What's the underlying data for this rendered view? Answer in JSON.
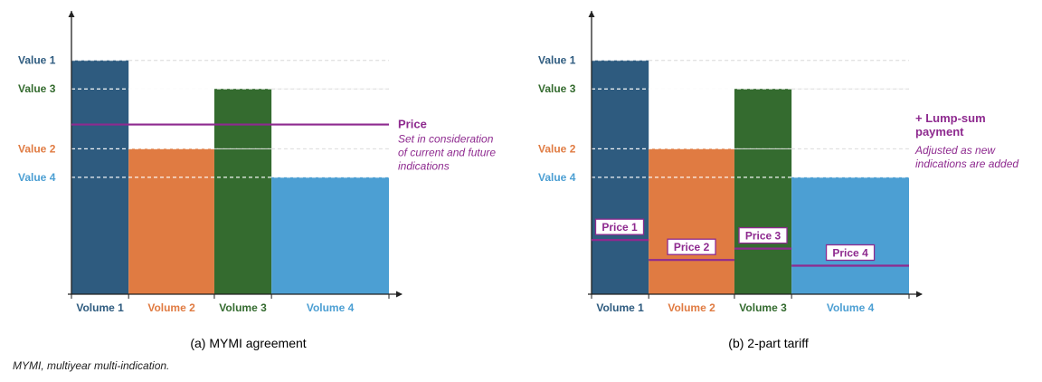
{
  "colors": {
    "value1": "#2e5b7f",
    "value2": "#e07b42",
    "value3": "#346b2f",
    "value4": "#4c9fd3",
    "price": "#8e2a8f",
    "dash": "#dddddd",
    "axis": "#222222"
  },
  "footnote": "MYMI, multiyear multi-indication.",
  "chart_data": [
    {
      "type": "bar",
      "title": "(a) MYMI agreement",
      "categories": [
        "Volume 1",
        "Volume 2",
        "Volume 3",
        "Volume 4"
      ],
      "widths": [
        0.9,
        1.35,
        0.9,
        1.85
      ],
      "values": [
        8.2,
        5.1,
        7.2,
        4.1
      ],
      "value_labels": [
        "Value 1",
        "Value 2",
        "Value 3",
        "Value 4"
      ],
      "ylim": [
        0,
        10
      ],
      "price": {
        "value": 5.95,
        "title": "Price",
        "note": [
          "Set in consideration",
          "of current and future",
          "indications"
        ]
      }
    },
    {
      "type": "bar",
      "title": "(b) 2-part tariff",
      "categories": [
        "Volume 1",
        "Volume 2",
        "Volume 3",
        "Volume 4"
      ],
      "widths": [
        0.9,
        1.35,
        0.9,
        1.85
      ],
      "values": [
        8.2,
        5.1,
        7.2,
        4.1
      ],
      "value_labels": [
        "Value 1",
        "Value 2",
        "Value 3",
        "Value 4"
      ],
      "ylim": [
        0,
        10
      ],
      "prices": [
        {
          "label": "Price 1",
          "value": 1.9
        },
        {
          "label": "Price 2",
          "value": 1.2
        },
        {
          "label": "Price 3",
          "value": 1.6
        },
        {
          "label": "Price 4",
          "value": 1.0
        }
      ],
      "lump_sum": {
        "title": [
          "+ Lump-sum",
          "payment"
        ],
        "note": [
          "Adjusted as new",
          "indications are added"
        ]
      }
    }
  ]
}
